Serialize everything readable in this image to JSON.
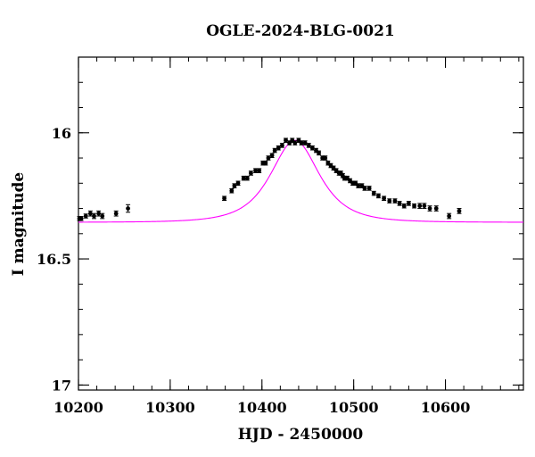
{
  "chart_data": {
    "type": "scatter",
    "title": "OGLE-2024-BLG-0021",
    "xlabel": "HJD - 2450000",
    "ylabel": "I magnitude",
    "xlim": [
      10200,
      10685
    ],
    "ylim": [
      17.02,
      15.7
    ],
    "y_inverted": true,
    "x_ticks": [
      10200,
      10300,
      10400,
      10500,
      10600
    ],
    "y_ticks": [
      16,
      16.5,
      17
    ],
    "x_tick_labels": [
      "10200",
      "10300",
      "10400",
      "10500",
      "10600"
    ],
    "y_tick_labels": [
      "16",
      "16.5",
      "17"
    ],
    "grid": false,
    "colors": {
      "points": "#000000",
      "model": "#ff00ff"
    },
    "model": {
      "name": "",
      "baseline_mag": 16.355,
      "peak_time": 10436,
      "peak_mag": 16.03,
      "timescale": 32
    },
    "series": [
      {
        "name": "",
        "x": [
          10201,
          10203,
          10208,
          10213,
          10217,
          10222,
          10226,
          10241,
          10254,
          10359,
          10367,
          10370,
          10374,
          10380,
          10384,
          10388,
          10393,
          10397,
          10401,
          10404,
          10407,
          10411,
          10414,
          10418,
          10422,
          10426,
          10430,
          10433,
          10436,
          10440,
          10443,
          10447,
          10451,
          10455,
          10459,
          10462,
          10466,
          10469,
          10472,
          10475,
          10478,
          10481,
          10484,
          10486,
          10488,
          10490,
          10493,
          10496,
          10499,
          10502,
          10505,
          10509,
          10512,
          10517,
          10522,
          10527,
          10533,
          10539,
          10545,
          10550,
          10555,
          10560,
          10566,
          10572,
          10577,
          10583,
          10590,
          10604,
          10615
        ],
        "y": [
          16.34,
          16.34,
          16.33,
          16.32,
          16.33,
          16.32,
          16.33,
          16.32,
          16.3,
          16.26,
          16.23,
          16.21,
          16.2,
          16.18,
          16.18,
          16.16,
          16.15,
          16.15,
          16.12,
          16.12,
          16.1,
          16.09,
          16.07,
          16.06,
          16.05,
          16.03,
          16.04,
          16.03,
          16.04,
          16.03,
          16.04,
          16.04,
          16.05,
          16.06,
          16.07,
          16.08,
          16.1,
          16.1,
          16.12,
          16.13,
          16.14,
          16.15,
          16.16,
          16.16,
          16.17,
          16.18,
          16.18,
          16.19,
          16.2,
          16.2,
          16.21,
          16.21,
          16.22,
          16.22,
          16.24,
          16.25,
          16.26,
          16.27,
          16.27,
          16.28,
          16.29,
          16.28,
          16.29,
          16.29,
          16.29,
          16.3,
          16.3,
          16.33,
          16.31
        ],
        "err": [
          0.008,
          0.008,
          0.008,
          0.01,
          0.01,
          0.01,
          0.01,
          0.01,
          0.015,
          0.008,
          0.008,
          0.008,
          0.008,
          0.008,
          0.008,
          0.008,
          0.008,
          0.008,
          0.008,
          0.008,
          0.008,
          0.008,
          0.008,
          0.008,
          0.008,
          0.008,
          0.008,
          0.008,
          0.008,
          0.008,
          0.008,
          0.008,
          0.008,
          0.008,
          0.008,
          0.008,
          0.008,
          0.008,
          0.008,
          0.008,
          0.008,
          0.008,
          0.008,
          0.008,
          0.008,
          0.008,
          0.008,
          0.008,
          0.008,
          0.008,
          0.008,
          0.008,
          0.008,
          0.008,
          0.008,
          0.008,
          0.008,
          0.008,
          0.008,
          0.008,
          0.008,
          0.008,
          0.008,
          0.01,
          0.01,
          0.01,
          0.01,
          0.01,
          0.01
        ]
      }
    ]
  }
}
